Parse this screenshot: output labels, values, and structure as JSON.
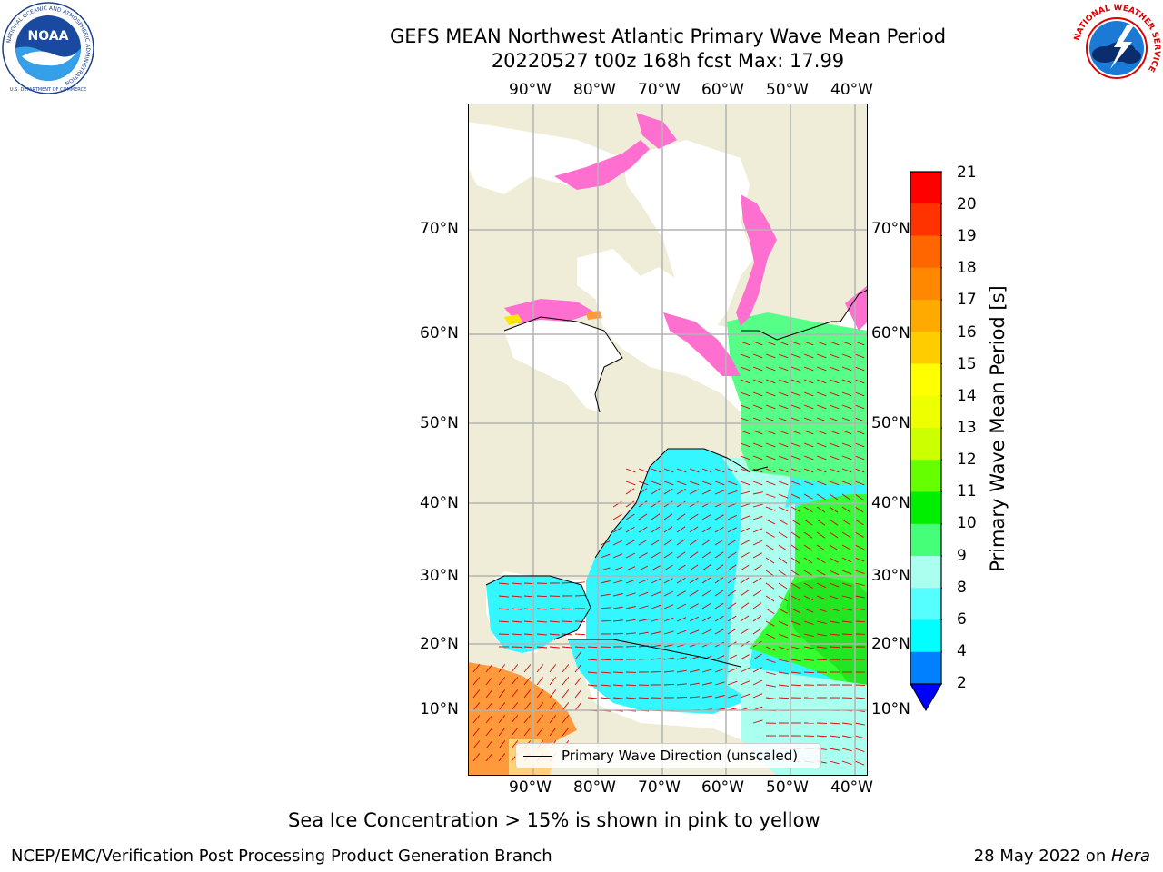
{
  "title": {
    "line1": "GEFS MEAN Northwest Atlantic Primary Wave Mean Period",
    "line2": "20220527 t00z 168h fcst   Max: 17.99"
  },
  "logos": {
    "left_icon": "noaa-logo-icon",
    "left_ring_text": "NATIONAL OCEANIC AND ATMOSPHERIC ADMINISTRATION",
    "left_bottom_text": "U.S. DEPARTMENT OF COMMERCE",
    "left_center_text": "NOAA",
    "right_icon": "national-weather-service-logo-icon",
    "right_ring_text": "NATIONAL WEATHER SERVICE"
  },
  "map": {
    "lon_labels": [
      "90°W",
      "80°W",
      "70°W",
      "60°W",
      "50°W",
      "40°W"
    ],
    "lat_labels": [
      "70°N",
      "60°N",
      "50°N",
      "40°N",
      "30°N",
      "20°N",
      "10°N"
    ],
    "legend_text": "Primary Wave Direction (unscaled)",
    "colors": {
      "land": "#efedd8",
      "sea_ice_pink": "#ff6fd0",
      "sea_ice_yellow": "#ffe600",
      "sea_ice_orange": "#ff9a3c",
      "grid": "#b4b4b4",
      "arrows": "#e00000"
    }
  },
  "colorbar": {
    "label": "Primary Wave Mean Period [s]",
    "ticks": [
      "21",
      "20",
      "19",
      "18",
      "17",
      "16",
      "15",
      "14",
      "13",
      "12",
      "11",
      "10",
      "9",
      "8",
      "6",
      "4",
      "2"
    ],
    "colors": [
      "#ff0000",
      "#ff3300",
      "#ff6600",
      "#ff7a00",
      "#ff9a00",
      "#ffbb00",
      "#ffee00",
      "#f0ff00",
      "#ccff00",
      "#a8ff00",
      "#66ff00",
      "#00f000",
      "#33ff33",
      "#55ff88",
      "#aaffee",
      "#55ffff",
      "#00ffff",
      "#00e4ff",
      "#0080ff"
    ],
    "under_color": "#0000ff"
  },
  "footer": {
    "note": "Sea Ice Concentration > 15% is shown in pink to yellow",
    "left": "NCEP/EMC/Verification Post Processing Product Generation Branch",
    "date": "28 May 2022 on ",
    "machine": "Hera"
  }
}
